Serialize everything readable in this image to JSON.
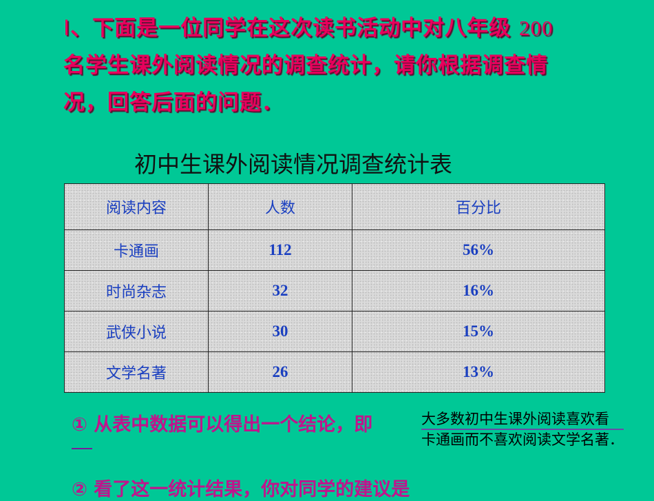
{
  "intro": {
    "numeral": "Ⅰ",
    "text_before": "、下面是一位同学在这次读书活动中对八年级",
    "number": "200",
    "text_after": "名学生课外阅读情况的调查统计，请你根据调查情况，回答后面的问题．"
  },
  "table": {
    "title": "初中生课外阅读情况调查统计表",
    "headers": [
      "阅读内容",
      "人数",
      "百分比"
    ],
    "rows": [
      [
        "卡通画",
        "112",
        "56%"
      ],
      [
        "时尚杂志",
        "32",
        "16%"
      ],
      [
        "武侠小说",
        "30",
        "15%"
      ],
      [
        "文学名著",
        "26",
        "13%"
      ]
    ]
  },
  "questions": {
    "q1": "① 从表中数据可以得出一个结论，即",
    "q1_answer_line1": "大多数初中生课外阅读喜欢看",
    "q1_answer_line2": "卡通画而不喜欢阅读文学名著．",
    "q2": "② 看了这一统计结果，你对同学的建议是"
  },
  "colors": {
    "background": "#00c896",
    "title": "#e8005c",
    "question": "#c0148c",
    "table_text": "#1a3fc0"
  }
}
